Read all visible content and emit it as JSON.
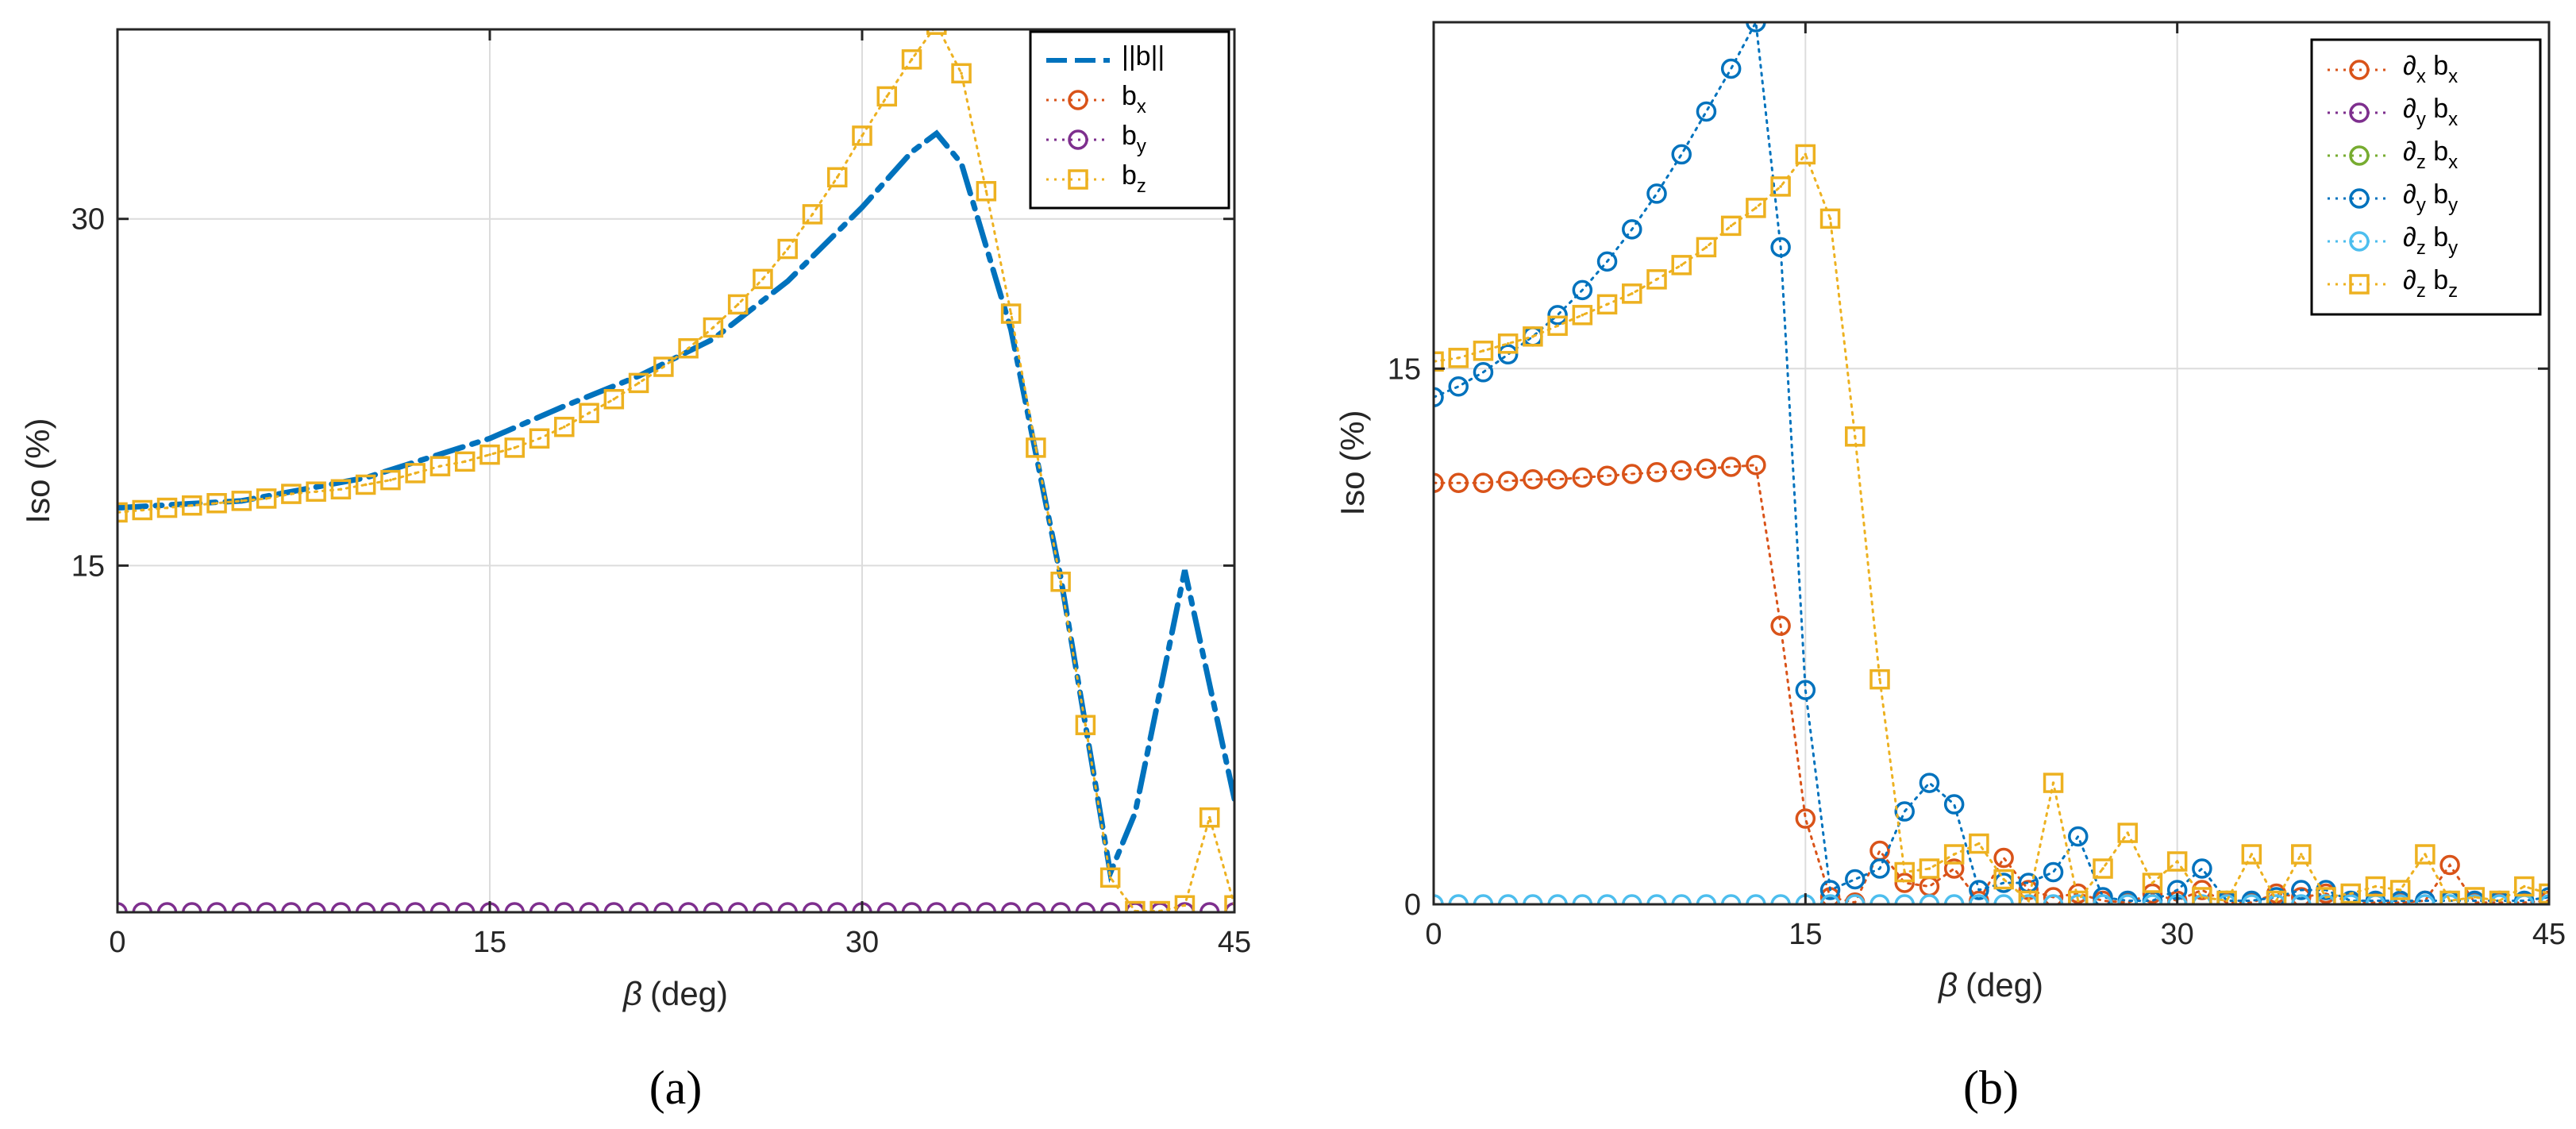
{
  "chart_data": [
    {
      "type": "line",
      "panel_label": "(a)",
      "xlabel": "(deg)",
      "xlabel_symbol": "β",
      "ylabel": "Iso (%)",
      "xlim": [
        0,
        45
      ],
      "ylim": [
        0,
        38.2
      ],
      "xticks": [
        "0",
        "15",
        "30",
        "45"
      ],
      "yticks": [
        "15",
        "30"
      ],
      "grid": true,
      "legend_position": "top-right",
      "legend": [
        "||b||",
        "bx",
        "by",
        "bz"
      ],
      "series": [
        {
          "name": "||b||",
          "label": "||b||",
          "sub": "",
          "color": "#0072BD",
          "style": "dashdot",
          "marker": "none",
          "x": [
            0,
            5,
            10,
            15,
            18,
            21,
            24,
            27,
            30,
            32,
            33,
            34,
            36,
            38,
            40,
            41,
            43,
            45
          ],
          "y": [
            17.5,
            17.8,
            18.8,
            20.5,
            21.9,
            23.2,
            24.8,
            27.3,
            30.5,
            32.9,
            33.7,
            32.4,
            25.2,
            14.5,
            1.7,
            4.3,
            14.8,
            4.9
          ]
        },
        {
          "name": "bx",
          "label": "b",
          "sub": "x",
          "color": "#D95319",
          "style": "dotted",
          "marker": "circle",
          "x": [],
          "y": []
        },
        {
          "name": "by",
          "label": "b",
          "sub": "y",
          "color": "#7E2F8E",
          "style": "dotted",
          "marker": "circle",
          "x": [
            0,
            1,
            2,
            3,
            4,
            5,
            6,
            7,
            8,
            9,
            10,
            11,
            12,
            13,
            14,
            15,
            16,
            17,
            18,
            19,
            20,
            21,
            22,
            23,
            24,
            25,
            26,
            27,
            28,
            29,
            30,
            31,
            32,
            33,
            34,
            35,
            36,
            37,
            38,
            39,
            40,
            41,
            42,
            43,
            44,
            45
          ],
          "y": [
            0,
            0,
            0,
            0,
            0,
            0,
            0,
            0,
            0,
            0,
            0,
            0,
            0,
            0,
            0,
            0,
            0,
            0,
            0,
            0,
            0,
            0,
            0,
            0,
            0,
            0,
            0,
            0,
            0,
            0,
            0,
            0,
            0,
            0,
            0,
            0,
            0,
            0,
            0,
            0,
            0,
            0,
            0,
            0,
            0,
            0
          ]
        },
        {
          "name": "bz",
          "label": "b",
          "sub": "z",
          "color": "#EDB120",
          "style": "dotted",
          "marker": "square",
          "x": [
            0,
            1,
            2,
            3,
            4,
            5,
            6,
            7,
            8,
            9,
            10,
            11,
            12,
            13,
            14,
            15,
            16,
            17,
            18,
            19,
            20,
            21,
            22,
            23,
            24,
            25,
            26,
            27,
            28,
            29,
            30,
            31,
            32,
            33,
            34,
            35,
            36,
            37,
            38,
            39,
            40,
            41,
            42,
            43,
            44,
            45
          ],
          "y": [
            17.3,
            17.4,
            17.5,
            17.6,
            17.7,
            17.8,
            17.9,
            18.1,
            18.2,
            18.3,
            18.5,
            18.7,
            19.0,
            19.3,
            19.5,
            19.8,
            20.1,
            20.5,
            21.0,
            21.6,
            22.2,
            22.9,
            23.6,
            24.4,
            25.3,
            26.3,
            27.4,
            28.7,
            30.2,
            31.8,
            33.6,
            35.3,
            36.9,
            38.4,
            36.3,
            31.2,
            25.9,
            20.1,
            14.3,
            8.1,
            1.5,
            0.05,
            0.05,
            0.3,
            4.1,
            0.3
          ]
        }
      ]
    },
    {
      "type": "line",
      "panel_label": "(b)",
      "xlabel": "(deg)",
      "xlabel_symbol": "β",
      "ylabel": "Iso (%)",
      "xlim": [
        0,
        45
      ],
      "ylim": [
        0,
        24.7
      ],
      "xticks": [
        "0",
        "15",
        "30",
        "45"
      ],
      "yticks": [
        "0",
        "15"
      ],
      "grid": true,
      "legend_position": "top-right",
      "legend": [
        "∂x bx",
        "∂y bx",
        "∂z bx",
        "∂y by",
        "∂z by",
        "∂z bz"
      ],
      "series": [
        {
          "name": "∂x bx",
          "label": "∂",
          "sub": "x",
          "label2": "b",
          "sub2": "x",
          "color": "#D95319",
          "style": "dotted",
          "marker": "circle",
          "x": [
            0,
            1,
            2,
            3,
            4,
            5,
            6,
            7,
            8,
            9,
            10,
            11,
            12,
            13,
            14,
            15,
            16,
            17,
            18,
            19,
            20,
            21,
            22,
            23,
            24,
            25,
            26,
            27,
            28,
            29,
            30,
            31,
            32,
            33,
            34,
            35,
            36,
            37,
            38,
            39,
            40,
            41,
            42,
            43,
            44,
            45
          ],
          "y": [
            11.8,
            11.8,
            11.8,
            11.85,
            11.9,
            11.9,
            11.95,
            12.0,
            12.05,
            12.1,
            12.15,
            12.2,
            12.25,
            12.3,
            7.8,
            2.4,
            0.2,
            0.05,
            1.5,
            0.6,
            0.5,
            1.0,
            0.1,
            1.3,
            0.4,
            0.2,
            0.3,
            0.1,
            0.05,
            0.3,
            0.1,
            0.4,
            0.05,
            0.05,
            0.3,
            0.2,
            0.3,
            0.05,
            0.05,
            0.05,
            0.1,
            1.1,
            0.05,
            0.05,
            0.05,
            0.1
          ]
        },
        {
          "name": "∂y bx",
          "label": "∂",
          "sub": "y",
          "label2": "b",
          "sub2": "x",
          "color": "#7E2F8E",
          "style": "dotted",
          "marker": "circle",
          "x": [],
          "y": []
        },
        {
          "name": "∂z bx",
          "label": "∂",
          "sub": "z",
          "label2": "b",
          "sub2": "x",
          "color": "#77AC30",
          "style": "dotted",
          "marker": "circle",
          "x": [],
          "y": []
        },
        {
          "name": "∂y by",
          "label": "∂",
          "sub": "y",
          "label2": "b",
          "sub2": "y",
          "color": "#0072BD",
          "style": "dotted",
          "marker": "circle",
          "x": [
            0,
            1,
            2,
            3,
            4,
            5,
            6,
            7,
            8,
            9,
            10,
            11,
            12,
            13,
            14,
            15,
            16,
            17,
            18,
            19,
            20,
            21,
            22,
            23,
            24,
            25,
            26,
            27,
            28,
            29,
            30,
            31,
            32,
            33,
            34,
            35,
            36,
            37,
            38,
            39,
            40,
            41,
            42,
            43,
            44,
            45
          ],
          "y": [
            14.2,
            14.5,
            14.9,
            15.4,
            15.9,
            16.5,
            17.2,
            18.0,
            18.9,
            19.9,
            21.0,
            22.2,
            23.4,
            24.7,
            18.4,
            6.0,
            0.4,
            0.7,
            1.0,
            2.6,
            3.4,
            2.8,
            0.4,
            0.6,
            0.6,
            0.9,
            1.9,
            0.2,
            0.1,
            0.1,
            0.4,
            1.0,
            0.1,
            0.1,
            0.2,
            0.4,
            0.4,
            0.1,
            0.1,
            0.1,
            0.1,
            0.1,
            0.1,
            0.1,
            0.1,
            0.2
          ]
        },
        {
          "name": "∂z by",
          "label": "∂",
          "sub": "z",
          "label2": "b",
          "sub2": "y",
          "color": "#4DBEEE",
          "style": "dotted",
          "marker": "circle",
          "x": [
            0,
            1,
            2,
            3,
            4,
            5,
            6,
            7,
            8,
            9,
            10,
            11,
            12,
            13,
            14,
            15,
            16,
            17,
            18,
            19,
            20,
            21,
            22,
            23,
            24,
            25,
            26,
            27,
            28,
            29,
            30,
            31,
            32,
            33,
            34,
            35,
            36,
            37,
            38,
            39,
            40,
            41,
            42,
            43,
            44,
            45
          ],
          "y": [
            0,
            0,
            0,
            0,
            0,
            0,
            0,
            0,
            0,
            0,
            0,
            0,
            0,
            0,
            0,
            0,
            0,
            0,
            0,
            0,
            0,
            0,
            0,
            0,
            0,
            0,
            0,
            0,
            0,
            0,
            0,
            0,
            0,
            0,
            0,
            0,
            0,
            0,
            0,
            0,
            0,
            0,
            0,
            0,
            0,
            0
          ]
        },
        {
          "name": "∂z bz",
          "label": "∂",
          "sub": "z",
          "label2": "b",
          "sub2": "z",
          "color": "#EDB120",
          "style": "dotted",
          "marker": "square",
          "x": [
            0,
            1,
            2,
            3,
            4,
            5,
            6,
            7,
            8,
            9,
            10,
            11,
            12,
            13,
            14,
            15,
            16,
            17,
            18,
            19,
            20,
            21,
            22,
            23,
            24,
            25,
            26,
            27,
            28,
            29,
            30,
            31,
            32,
            33,
            34,
            35,
            36,
            37,
            38,
            39,
            40,
            41,
            42,
            43,
            44,
            45
          ],
          "y": [
            15.2,
            15.3,
            15.5,
            15.7,
            15.9,
            16.2,
            16.5,
            16.8,
            17.1,
            17.5,
            17.9,
            18.4,
            19.0,
            19.5,
            20.1,
            21.0,
            19.2,
            13.1,
            6.3,
            0.9,
            1.0,
            1.4,
            1.7,
            0.7,
            0.1,
            3.4,
            0.1,
            1.0,
            2.0,
            0.6,
            1.2,
            0.2,
            0.1,
            1.4,
            0.1,
            1.4,
            0.2,
            0.3,
            0.5,
            0.4,
            1.4,
            0.1,
            0.2,
            0.1,
            0.5,
            0.3
          ]
        }
      ]
    }
  ]
}
